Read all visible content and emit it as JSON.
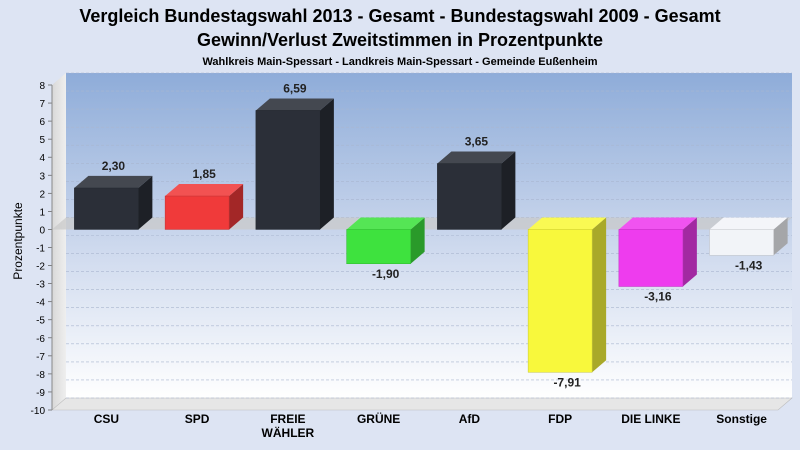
{
  "chart_data": {
    "type": "bar",
    "title": "Vergleich Bundestagswahl 2013 - Gesamt - Bundestagswahl 2009 - Gesamt",
    "subtitle": "Gewinn/Verlust Zweitstimmen in Prozentpunkte",
    "caption": "Wahlkreis Main-Spessart - Landkreis Main-Spessart - Gemeinde Eußenheim",
    "ylabel": "Prozentpunkte",
    "ylim": [
      -10,
      8
    ],
    "yticks": [
      "8",
      "7",
      "6",
      "5",
      "4",
      "3",
      "2",
      "1",
      "0",
      "-1",
      "-2",
      "-3",
      "-4",
      "-5",
      "-6",
      "-7",
      "-8",
      "-9",
      "-10"
    ],
    "categories": [
      {
        "name": "CSU",
        "lines": [
          "CSU"
        ]
      },
      {
        "name": "SPD",
        "lines": [
          "SPD"
        ]
      },
      {
        "name": "FREIE WÄHLER",
        "lines": [
          "FREIE",
          "WÄHLER"
        ]
      },
      {
        "name": "GRÜNE",
        "lines": [
          "GRÜNE"
        ]
      },
      {
        "name": "AfD",
        "lines": [
          "AfD"
        ]
      },
      {
        "name": "FDP",
        "lines": [
          "FDP"
        ]
      },
      {
        "name": "DIE LINKE",
        "lines": [
          "DIE LINKE"
        ]
      },
      {
        "name": "Sonstige",
        "lines": [
          "Sonstige"
        ]
      }
    ],
    "values": [
      2.3,
      1.85,
      6.59,
      -1.9,
      3.65,
      -7.91,
      -3.16,
      -1.43
    ],
    "value_labels": [
      "2,30",
      "1,85",
      "6,59",
      "-1,90",
      "3,65",
      "-7,91",
      "-3,16",
      "-1,43"
    ],
    "colors": [
      "#2b2f38",
      "#f03a3a",
      "#2b2f38",
      "#3ee23e",
      "#2b2f38",
      "#f8f83c",
      "#ee3cee",
      "#f2f4f8"
    ],
    "grid": true,
    "legend": "none"
  }
}
